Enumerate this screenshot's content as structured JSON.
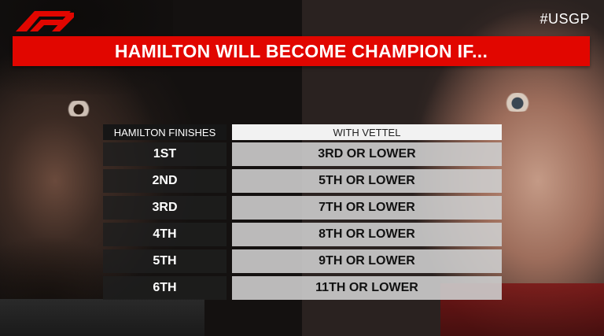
{
  "logo": {
    "icon": "f1-logo-icon",
    "color": "#e10600"
  },
  "hashtag": "#USGP",
  "banner": {
    "title": "HAMILTON WILL BECOME CHAMPION IF...",
    "color": "#e10600"
  },
  "table": {
    "headers": {
      "left": "HAMILTON FINISHES",
      "right": "WITH VETTEL"
    },
    "rows": [
      {
        "hamilton": "1ST",
        "vettel": "3RD OR LOWER"
      },
      {
        "hamilton": "2ND",
        "vettel": "5TH OR LOWER"
      },
      {
        "hamilton": "3RD",
        "vettel": "7TH OR LOWER"
      },
      {
        "hamilton": "4TH",
        "vettel": "8TH OR LOWER"
      },
      {
        "hamilton": "5TH",
        "vettel": "9TH OR LOWER"
      },
      {
        "hamilton": "6TH",
        "vettel": "11TH OR LOWER"
      }
    ]
  }
}
